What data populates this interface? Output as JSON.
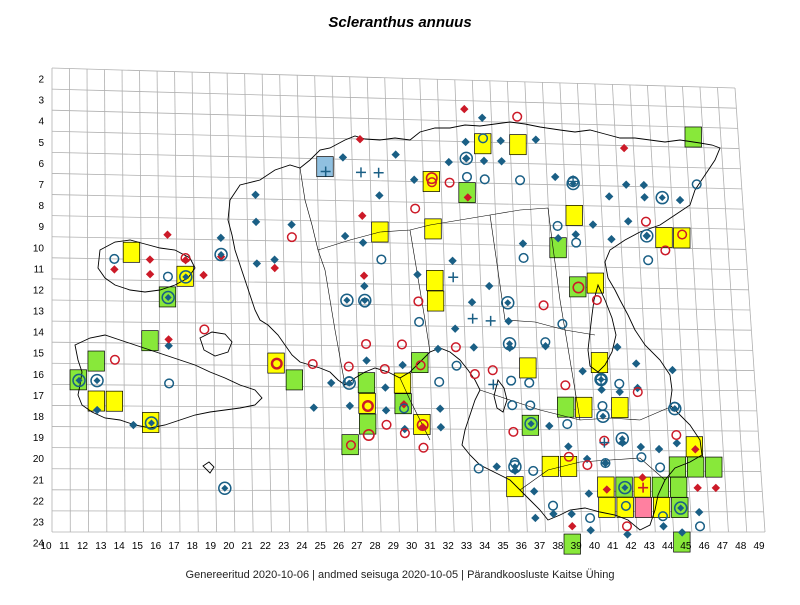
{
  "title": "Scleranthus annuus",
  "footer": {
    "generated": "Genereeritud 2020-10-06",
    "data_state": "andmed seisuga 2020-10-05",
    "organization": "Pärandkoosluste Kaitse Ühing",
    "separator": "|"
  },
  "grid": {
    "row_labels": [
      2,
      3,
      4,
      5,
      6,
      7,
      8,
      9,
      10,
      11,
      12,
      13,
      14,
      15,
      16,
      17,
      18,
      19,
      20,
      21,
      22,
      23,
      24
    ],
    "col_labels": [
      10,
      11,
      12,
      13,
      14,
      15,
      16,
      17,
      18,
      19,
      20,
      21,
      22,
      23,
      24,
      25,
      26,
      27,
      28,
      29,
      30,
      31,
      32,
      33,
      34,
      35,
      36,
      37,
      38,
      39,
      40,
      41,
      42,
      43,
      44,
      45,
      46,
      47,
      48,
      49
    ]
  },
  "colors": {
    "grid_line": "#b0b0b0",
    "coast": "#000000",
    "yellow": "#ffff00",
    "green": "#88e83a",
    "pink": "#ff80a0",
    "lightblue": "#90c0e0",
    "blue_marker": "#1a5f85",
    "red_marker": "#cc1a28"
  },
  "markers": {
    "filled_squares": [
      {
        "c": 36,
        "r": 4.6,
        "f": "yellow"
      },
      {
        "c": 34,
        "r": 4.6,
        "f": "yellow"
      },
      {
        "c": 46,
        "r": 4.0,
        "f": "green"
      },
      {
        "c": 25,
        "r": 5.9,
        "f": "lightblue"
      },
      {
        "c": 31,
        "r": 6.5,
        "f": "yellow"
      },
      {
        "c": 33,
        "r": 7.0,
        "f": "green"
      },
      {
        "c": 31,
        "r": 8.8,
        "f": "yellow"
      },
      {
        "c": 28,
        "r": 9.0,
        "f": "yellow"
      },
      {
        "c": 39,
        "r": 8.0,
        "f": "yellow"
      },
      {
        "c": 38,
        "r": 9.6,
        "f": "green"
      },
      {
        "c": 44,
        "r": 9.0,
        "f": "yellow"
      },
      {
        "c": 45,
        "r": 9.0,
        "f": "yellow"
      },
      {
        "c": 14,
        "r": 10.2,
        "f": "yellow"
      },
      {
        "c": 17,
        "r": 11.3,
        "f": "yellow"
      },
      {
        "c": 16,
        "r": 12.3,
        "f": "green"
      },
      {
        "c": 31,
        "r": 11.3,
        "f": "yellow"
      },
      {
        "c": 31,
        "r": 12.3,
        "f": "yellow"
      },
      {
        "c": 39,
        "r": 11.5,
        "f": "green"
      },
      {
        "c": 40,
        "r": 11.3,
        "f": "yellow"
      },
      {
        "c": 15,
        "r": 14.4,
        "f": "green"
      },
      {
        "c": 12,
        "r": 15.4,
        "f": "green"
      },
      {
        "c": 11,
        "r": 16.3,
        "f": "green"
      },
      {
        "c": 12,
        "r": 17.3,
        "f": "yellow"
      },
      {
        "c": 13,
        "r": 17.3,
        "f": "yellow"
      },
      {
        "c": 22,
        "r": 15.4,
        "f": "yellow"
      },
      {
        "c": 23,
        "r": 16.2,
        "f": "green"
      },
      {
        "c": 27,
        "r": 16.3,
        "f": "green"
      },
      {
        "c": 30,
        "r": 15.3,
        "f": "green"
      },
      {
        "c": 29,
        "r": 16.3,
        "f": "yellow"
      },
      {
        "c": 29,
        "r": 17.3,
        "f": "green"
      },
      {
        "c": 27,
        "r": 17.3,
        "f": "yellow"
      },
      {
        "c": 27,
        "r": 18.3,
        "f": "green"
      },
      {
        "c": 26,
        "r": 19.3,
        "f": "green"
      },
      {
        "c": 15,
        "r": 18.3,
        "f": "yellow"
      },
      {
        "c": 30,
        "r": 18.3,
        "f": "yellow"
      },
      {
        "c": 36,
        "r": 15.5,
        "f": "yellow"
      },
      {
        "c": 40,
        "r": 15.2,
        "f": "yellow"
      },
      {
        "c": 38,
        "r": 17.4,
        "f": "green"
      },
      {
        "c": 39,
        "r": 17.4,
        "f": "yellow"
      },
      {
        "c": 41,
        "r": 17.4,
        "f": "yellow"
      },
      {
        "c": 36,
        "r": 18.3,
        "f": "green"
      },
      {
        "c": 37,
        "r": 20.3,
        "f": "yellow"
      },
      {
        "c": 38,
        "r": 20.3,
        "f": "yellow"
      },
      {
        "c": 45,
        "r": 19.3,
        "f": "yellow"
      },
      {
        "c": 44,
        "r": 20.3,
        "f": "green"
      },
      {
        "c": 45,
        "r": 20.3,
        "f": "green"
      },
      {
        "c": 46,
        "r": 20.3,
        "f": "green"
      },
      {
        "c": 43,
        "r": 21.3,
        "f": "green"
      },
      {
        "c": 44,
        "r": 21.3,
        "f": "green"
      },
      {
        "c": 40,
        "r": 21.3,
        "f": "yellow"
      },
      {
        "c": 41,
        "r": 21.3,
        "f": "green"
      },
      {
        "c": 42,
        "r": 21.3,
        "f": "yellow"
      },
      {
        "c": 40,
        "r": 22.3,
        "f": "yellow"
      },
      {
        "c": 41,
        "r": 22.3,
        "f": "yellow"
      },
      {
        "c": 42,
        "r": 22.3,
        "f": "pink"
      },
      {
        "c": 43,
        "r": 22.3,
        "f": "yellow"
      },
      {
        "c": 44,
        "r": 22.3,
        "f": "green"
      },
      {
        "c": 35,
        "r": 21.3,
        "f": "yellow"
      },
      {
        "c": 38,
        "r": 24.1,
        "f": "green"
      },
      {
        "c": 44,
        "r": 24.0,
        "f": "green"
      }
    ],
    "blue_diamonds": [
      [
        34,
        3.3
      ],
      [
        33,
        4.5
      ],
      [
        35,
        4.4
      ],
      [
        37,
        4.3
      ],
      [
        29,
        5.2
      ],
      [
        26,
        5.4
      ],
      [
        33,
        5.3
      ],
      [
        34,
        5.4
      ],
      [
        35,
        5.4
      ],
      [
        32,
        5.5
      ],
      [
        38,
        6.1
      ],
      [
        30,
        6.4
      ],
      [
        43,
        6.4
      ],
      [
        42,
        6.4
      ],
      [
        41,
        7.0
      ],
      [
        43,
        7.0
      ],
      [
        45,
        7.1
      ],
      [
        21,
        7.3
      ],
      [
        28,
        7.2
      ],
      [
        42,
        8.2
      ],
      [
        40,
        8.4
      ],
      [
        41,
        9.1
      ],
      [
        43,
        8.9
      ],
      [
        38,
        9.1
      ],
      [
        39,
        8.9
      ],
      [
        21,
        8.6
      ],
      [
        23,
        8.7
      ],
      [
        19,
        9.4
      ],
      [
        26,
        9.2
      ],
      [
        27,
        9.5
      ],
      [
        36,
        9.4
      ],
      [
        21,
        10.6
      ],
      [
        22,
        10.4
      ],
      [
        32,
        10.3
      ],
      [
        30,
        11.0
      ],
      [
        34,
        11.5
      ],
      [
        33,
        12.3
      ],
      [
        27,
        11.6
      ],
      [
        35,
        13.2
      ],
      [
        32,
        13.6
      ],
      [
        33,
        14.5
      ],
      [
        31,
        14.6
      ],
      [
        35,
        14.5
      ],
      [
        37,
        14.4
      ],
      [
        41,
        14.4
      ],
      [
        42,
        15.2
      ],
      [
        44,
        15.5
      ],
      [
        39,
        15.6
      ],
      [
        40,
        16.5
      ],
      [
        41,
        16.6
      ],
      [
        42,
        16.4
      ],
      [
        16,
        14.6
      ],
      [
        27,
        15.2
      ],
      [
        29,
        15.4
      ],
      [
        28,
        16.5
      ],
      [
        25,
        16.3
      ],
      [
        26,
        17.4
      ],
      [
        24,
        17.5
      ],
      [
        28,
        17.6
      ],
      [
        29,
        18.5
      ],
      [
        31,
        17.5
      ],
      [
        31,
        18.4
      ],
      [
        37,
        18.3
      ],
      [
        34,
        20.3
      ],
      [
        35,
        20.5
      ],
      [
        38,
        19.3
      ],
      [
        39,
        19.9
      ],
      [
        40,
        20.1
      ],
      [
        42,
        19.3
      ],
      [
        43,
        19.4
      ],
      [
        44,
        19.1
      ],
      [
        41,
        19.1
      ],
      [
        36,
        21.5
      ],
      [
        39,
        21.6
      ],
      [
        38,
        22.6
      ],
      [
        36,
        22.8
      ],
      [
        37,
        22.6
      ],
      [
        43,
        23.2
      ],
      [
        45,
        22.5
      ],
      [
        44,
        23.5
      ],
      [
        39,
        23.4
      ],
      [
        41,
        23.6
      ],
      [
        12,
        17.7
      ],
      [
        14,
        18.4
      ]
    ],
    "red_diamonds": [
      [
        33,
        2.9
      ],
      [
        27,
        4.5
      ],
      [
        42,
        4.6
      ],
      [
        16,
        9.3
      ],
      [
        15,
        10.5
      ],
      [
        17,
        10.5
      ],
      [
        19,
        10.3
      ],
      [
        22,
        10.8
      ],
      [
        13,
        11.0
      ],
      [
        15,
        11.2
      ],
      [
        27,
        11.1
      ],
      [
        18,
        11.2
      ],
      [
        16,
        14.3
      ],
      [
        29,
        17.3
      ],
      [
        38,
        23.2
      ],
      [
        40,
        21.4
      ],
      [
        45,
        19.4
      ],
      [
        46,
        21.3
      ],
      [
        45,
        21.3
      ],
      [
        42,
        20.8
      ],
      [
        27,
        8.2
      ],
      [
        30,
        18.4
      ],
      [
        33,
        7.2
      ]
    ],
    "blue_circles": [
      [
        34,
        4.3
      ],
      [
        33,
        6.2
      ],
      [
        34,
        6.3
      ],
      [
        36,
        6.3
      ],
      [
        46,
        6.3
      ],
      [
        38,
        8.5
      ],
      [
        39,
        9.3
      ],
      [
        43,
        10.1
      ],
      [
        36,
        10.1
      ],
      [
        13,
        10.5
      ],
      [
        16,
        11.3
      ],
      [
        28,
        10.3
      ],
      [
        27,
        12.4
      ],
      [
        30,
        13.3
      ],
      [
        38,
        13.3
      ],
      [
        37,
        14.2
      ],
      [
        35,
        16.1
      ],
      [
        36,
        16.2
      ],
      [
        32,
        15.4
      ],
      [
        31,
        16.2
      ],
      [
        16,
        16.4
      ],
      [
        26,
        16.2
      ],
      [
        29,
        17.5
      ],
      [
        40,
        17.3
      ],
      [
        41,
        16.2
      ],
      [
        44,
        17.3
      ],
      [
        38,
        18.2
      ],
      [
        35,
        17.3
      ],
      [
        36,
        17.3
      ],
      [
        35,
        20.1
      ],
      [
        33,
        20.4
      ],
      [
        36,
        20.5
      ],
      [
        40,
        20.1
      ],
      [
        42,
        19.8
      ],
      [
        43,
        20.3
      ],
      [
        39,
        22.8
      ],
      [
        41,
        22.2
      ],
      [
        45,
        23.2
      ],
      [
        37,
        22.2
      ],
      [
        43,
        22.7
      ]
    ],
    "red_circles": [
      [
        36,
        3.2
      ],
      [
        30,
        7.8
      ],
      [
        31,
        6.5
      ],
      [
        32,
        6.5
      ],
      [
        45,
        8.8
      ],
      [
        44,
        9.6
      ],
      [
        43,
        8.2
      ],
      [
        23,
        9.3
      ],
      [
        17,
        10.4
      ],
      [
        30,
        12.3
      ],
      [
        40,
        12.1
      ],
      [
        37,
        12.4
      ],
      [
        18,
        13.8
      ],
      [
        27,
        14.4
      ],
      [
        29,
        14.4
      ],
      [
        32,
        14.5
      ],
      [
        13,
        15.3
      ],
      [
        22,
        15.4
      ],
      [
        24,
        15.4
      ],
      [
        28,
        15.6
      ],
      [
        30,
        15.4
      ],
      [
        26,
        15.5
      ],
      [
        27,
        17.4
      ],
      [
        28,
        18.3
      ],
      [
        29,
        18.7
      ],
      [
        26,
        19.3
      ],
      [
        30,
        19.4
      ],
      [
        34,
        15.6
      ],
      [
        33,
        15.8
      ],
      [
        38,
        16.3
      ],
      [
        42,
        16.6
      ],
      [
        44,
        18.7
      ],
      [
        41,
        23.2
      ],
      [
        39,
        20.2
      ],
      [
        38,
        19.8
      ],
      [
        40,
        19.0
      ],
      [
        35,
        18.6
      ]
    ],
    "ringed_diamonds": [
      [
        33,
        5.3
      ],
      [
        39,
        6.4
      ],
      [
        44,
        7.0
      ],
      [
        43,
        8.9
      ],
      [
        19,
        10.2
      ],
      [
        17,
        11.3
      ],
      [
        16,
        12.3
      ],
      [
        26,
        12.3
      ],
      [
        27,
        12.3
      ],
      [
        35,
        12.3
      ],
      [
        35,
        14.3
      ],
      [
        12,
        16.3
      ],
      [
        11,
        16.3
      ],
      [
        26,
        16.3
      ],
      [
        15,
        18.3
      ],
      [
        36,
        18.2
      ],
      [
        35,
        20.3
      ],
      [
        40,
        16.0
      ],
      [
        40,
        17.8
      ],
      [
        44,
        17.4
      ],
      [
        41,
        21.3
      ],
      [
        44,
        22.3
      ],
      [
        19,
        21.4
      ],
      [
        41,
        18.9
      ]
    ],
    "red_rings": [
      [
        31,
        6.3
      ],
      [
        27,
        17.4
      ],
      [
        30,
        18.3
      ],
      [
        39,
        11.5
      ],
      [
        22,
        15.4
      ],
      [
        27,
        18.8
      ]
    ],
    "blue_plus": [
      [
        25,
        6.1
      ],
      [
        27,
        6.1
      ],
      [
        28,
        6.1
      ],
      [
        32,
        11.1
      ],
      [
        34,
        13.2
      ],
      [
        33,
        13.1
      ],
      [
        34,
        16.3
      ],
      [
        40,
        19.1
      ]
    ],
    "red_plus": [
      [
        42,
        21.3
      ]
    ],
    "blue_hollow_plus_circle": [
      [
        39,
        6.3
      ],
      [
        40,
        16.0
      ]
    ]
  }
}
